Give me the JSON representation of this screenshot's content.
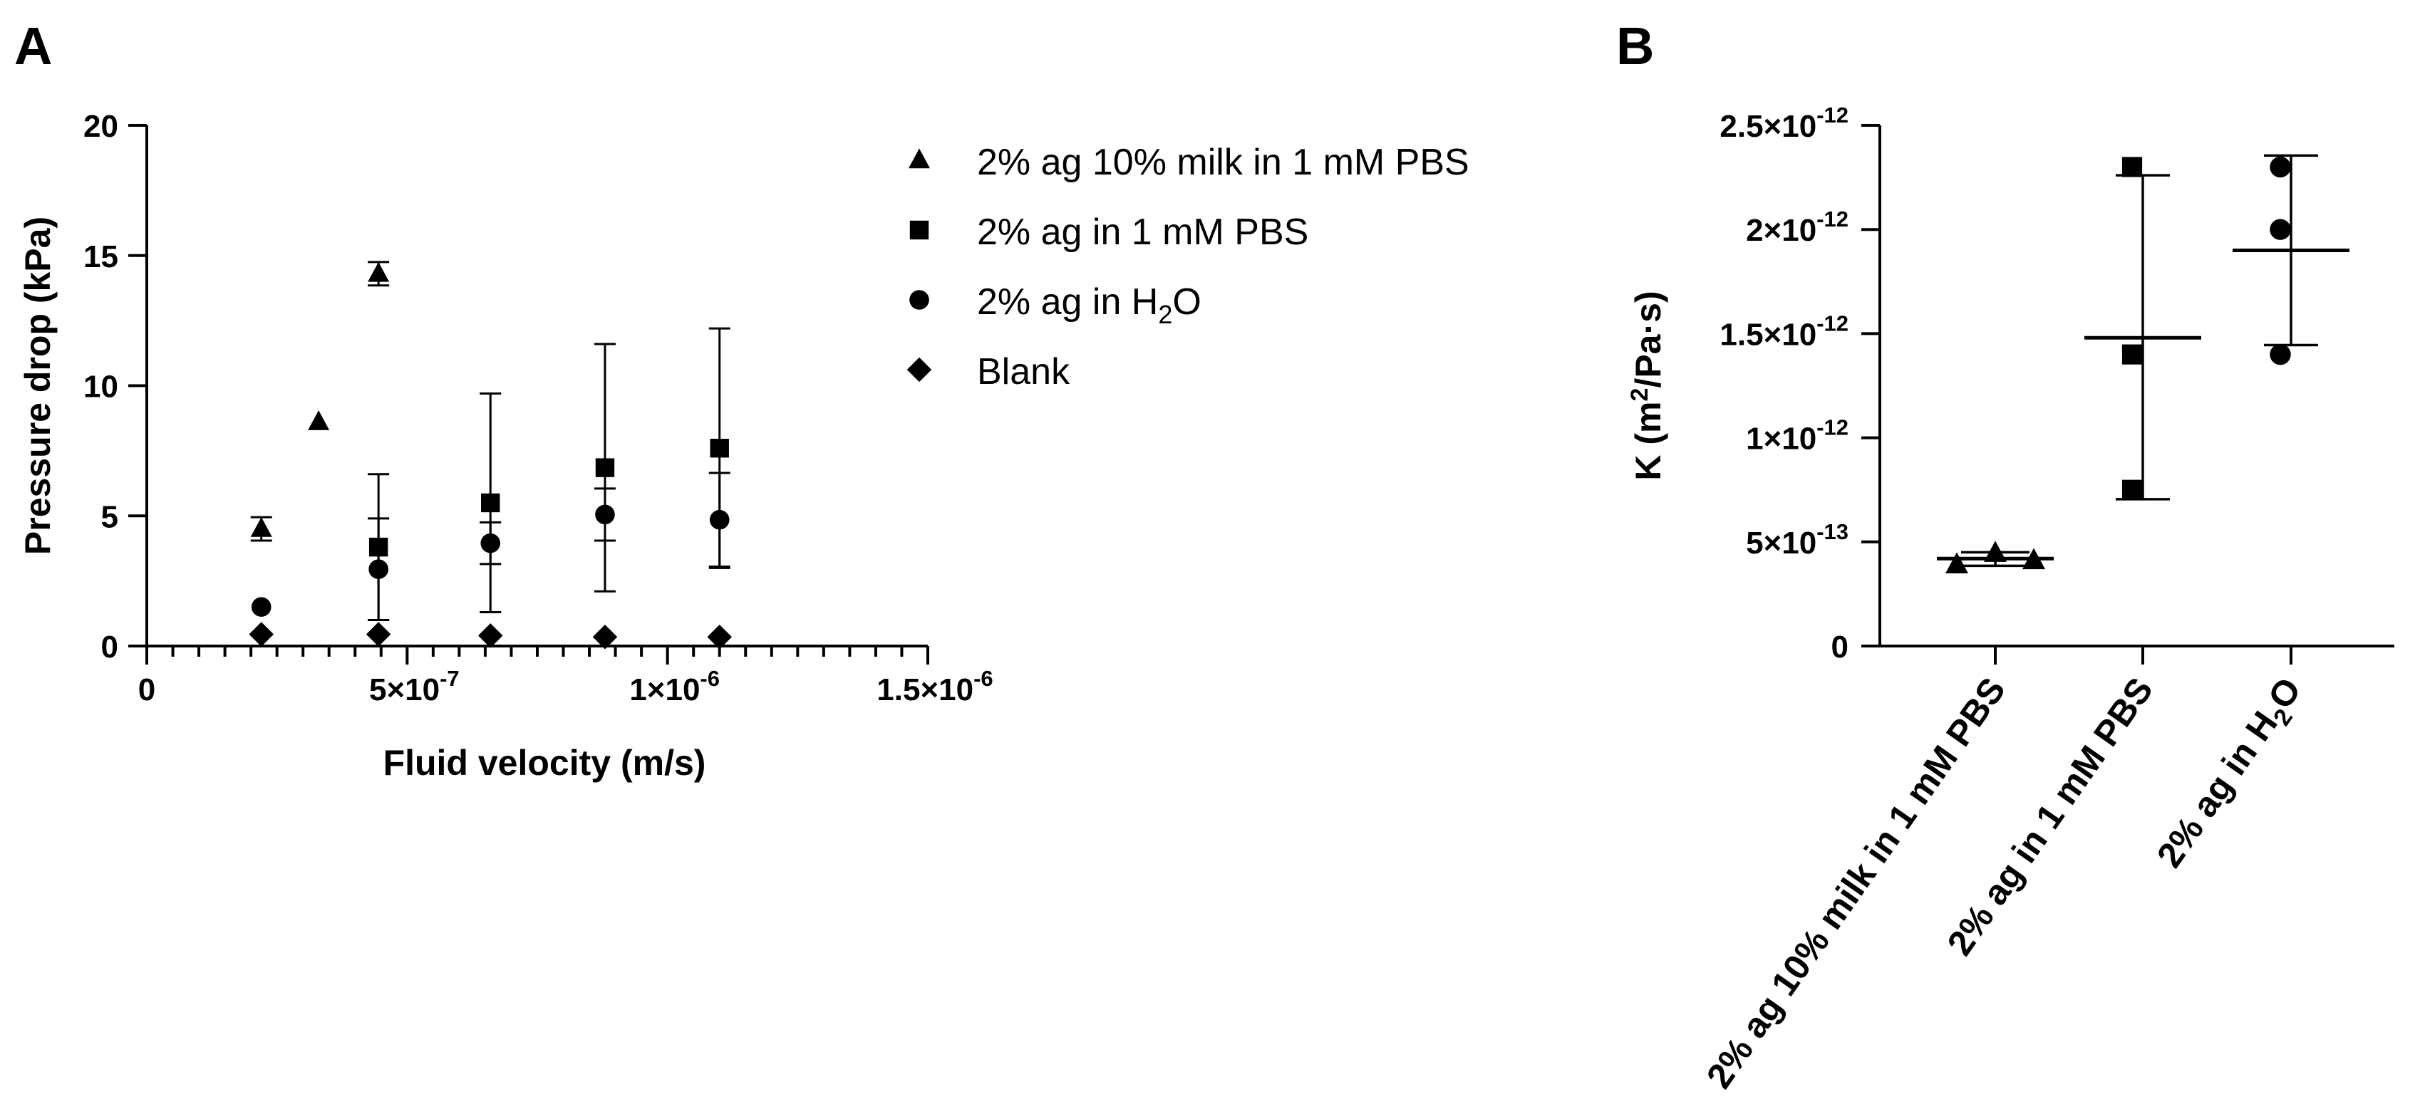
{
  "panels": {
    "a_label": "A",
    "b_label": "B"
  },
  "chart_data": [
    {
      "type": "scatter",
      "panel": "A",
      "xlabel": "Fluid velocity (m/s)",
      "ylabel": "Pressure drop (kPa)",
      "xlim": [
        0,
        1.5e-06
      ],
      "ylim": [
        0,
        20
      ],
      "xticks": [
        {
          "value": 0,
          "label": "0",
          "exp": ""
        },
        {
          "value": 5e-07,
          "label": "5×10",
          "exp": "-7"
        },
        {
          "value": 1e-06,
          "label": "1×10",
          "exp": "-6"
        },
        {
          "value": 1.5e-06,
          "label": "1.5×10",
          "exp": "-6"
        }
      ],
      "yticks": [
        {
          "value": 0,
          "label": "0"
        },
        {
          "value": 5,
          "label": "5"
        },
        {
          "value": 10,
          "label": "10"
        },
        {
          "value": 15,
          "label": "15"
        },
        {
          "value": 20,
          "label": "20"
        }
      ],
      "legend_position": "top-right",
      "series": [
        {
          "name": "2% ag 10% milk in 1 mM PBS",
          "marker": "triangle",
          "points": [
            {
              "x": 2.2e-07,
              "y": 4.5,
              "err": 0.45
            },
            {
              "x": 3.3e-07,
              "y": 8.6,
              "err": 0
            },
            {
              "x": 4.45e-07,
              "y": 14.3,
              "err": 0.45
            }
          ]
        },
        {
          "name": "2% ag in 1 mM PBS",
          "marker": "square",
          "points": [
            {
              "x": 4.45e-07,
              "y": 3.8,
              "err": 2.8
            },
            {
              "x": 6.6e-07,
              "y": 5.5,
              "err": 4.2
            },
            {
              "x": 8.8e-07,
              "y": 6.85,
              "err": 4.75
            },
            {
              "x": 1.1e-06,
              "y": 7.6,
              "err": 4.6
            }
          ]
        },
        {
          "name": "2% ag in H2O",
          "label_parts": [
            "2% ag in H",
            "2",
            "O"
          ],
          "marker": "circle",
          "points": [
            {
              "x": 2.2e-07,
              "y": 1.5,
              "err": 0
            },
            {
              "x": 4.45e-07,
              "y": 2.95,
              "err": 1.95
            },
            {
              "x": 6.6e-07,
              "y": 3.95,
              "err": 0.8
            },
            {
              "x": 8.8e-07,
              "y": 5.05,
              "err": 1.0
            },
            {
              "x": 1.1e-06,
              "y": 4.85,
              "err": 1.8
            }
          ]
        },
        {
          "name": "Blank",
          "marker": "diamond",
          "points": [
            {
              "x": 2.2e-07,
              "y": 0.45,
              "err": 0
            },
            {
              "x": 4.45e-07,
              "y": 0.45,
              "err": 0
            },
            {
              "x": 6.6e-07,
              "y": 0.4,
              "err": 0
            },
            {
              "x": 8.8e-07,
              "y": 0.35,
              "err": 0
            },
            {
              "x": 1.1e-06,
              "y": 0.35,
              "err": 0
            }
          ]
        }
      ]
    },
    {
      "type": "scatter",
      "panel": "B",
      "ylabel_parts": [
        "K (m",
        "2",
        "/Pa·s)"
      ],
      "ylim": [
        0,
        2.5e-12
      ],
      "yticks": [
        {
          "value": 0,
          "label": "0",
          "exp": ""
        },
        {
          "value": 5e-13,
          "label": "5×10",
          "exp": "-13"
        },
        {
          "value": 1e-12,
          "label": "1×10",
          "exp": "-12"
        },
        {
          "value": 1.5e-12,
          "label": "1.5×10",
          "exp": "-12"
        },
        {
          "value": 2e-12,
          "label": "2×10",
          "exp": "-12"
        },
        {
          "value": 2.5e-12,
          "label": "2.5×10",
          "exp": "-12"
        }
      ],
      "categories": [
        {
          "label": "2% ag 10% milk in 1 mM PBS",
          "marker": "triangle",
          "values": [
            3.9e-13,
            4.45e-13,
            4.1e-13
          ],
          "mean": 4.2e-13,
          "sd_low": 3.85e-13,
          "sd_high": 4.5e-13
        },
        {
          "label": "2% ag in 1 mM PBS",
          "marker": "square",
          "values": [
            2.3e-12,
            1.4e-12,
            7.5e-13
          ],
          "mean": 1.48e-12,
          "sd_low": 7.05e-13,
          "sd_high": 2.26e-12
        },
        {
          "label": "2% ag in H2O",
          "label_parts": [
            "2% ag in H",
            "2",
            "O"
          ],
          "marker": "circle",
          "values": [
            2.3e-12,
            2e-12,
            1.4e-12
          ],
          "mean": 1.9e-12,
          "sd_low": 1.445e-12,
          "sd_high": 2.355e-12
        }
      ]
    }
  ]
}
